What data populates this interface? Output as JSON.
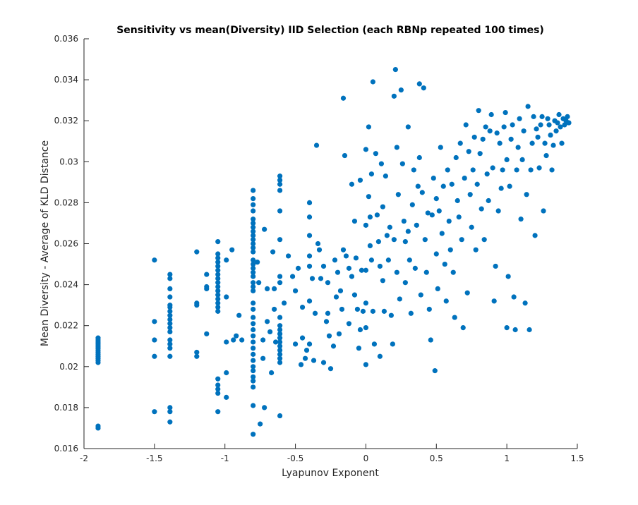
{
  "chart_data": {
    "type": "scatter",
    "title": "Sensitivity vs mean(Diversity) IID Selection (each RBNp repeated 100 times)",
    "xlabel": "Lyapunov Exponent",
    "ylabel": "Mean Diversity - Average of KLD Distance",
    "xlim": [
      -2,
      1.5
    ],
    "ylim": [
      0.016,
      0.036
    ],
    "xticks": [
      -2,
      -1.5,
      -1,
      -0.5,
      0,
      0.5,
      1,
      1.5
    ],
    "xtick_labels": [
      "-2",
      "-1.5",
      "-1",
      "-0.5",
      "0",
      "0.5",
      "1",
      "1.5"
    ],
    "yticks": [
      0.016,
      0.018,
      0.02,
      0.022,
      0.024,
      0.026,
      0.028,
      0.03,
      0.032,
      0.034,
      0.036
    ],
    "ytick_labels": [
      "0.016",
      "0.018",
      "0.02",
      "0.022",
      "0.024",
      "0.026",
      "0.028",
      "0.03",
      "0.032",
      "0.034",
      "0.036"
    ],
    "grid": false,
    "marker_color": "#0072BD",
    "points": [
      [
        -1.9,
        0.0214
      ],
      [
        -1.9,
        0.0213
      ],
      [
        -1.9,
        0.0212
      ],
      [
        -1.9,
        0.0211
      ],
      [
        -1.9,
        0.021
      ],
      [
        -1.9,
        0.0209
      ],
      [
        -1.9,
        0.0208
      ],
      [
        -1.9,
        0.0207
      ],
      [
        -1.9,
        0.0206
      ],
      [
        -1.9,
        0.0205
      ],
      [
        -1.9,
        0.0204
      ],
      [
        -1.9,
        0.0203
      ],
      [
        -1.9,
        0.0202
      ],
      [
        -1.9,
        0.0171
      ],
      [
        -1.9,
        0.017
      ],
      [
        -1.5,
        0.0252
      ],
      [
        -1.5,
        0.0222
      ],
      [
        -1.5,
        0.0213
      ],
      [
        -1.5,
        0.0205
      ],
      [
        -1.5,
        0.0178
      ],
      [
        -1.39,
        0.0245
      ],
      [
        -1.39,
        0.0243
      ],
      [
        -1.39,
        0.0238
      ],
      [
        -1.39,
        0.0234
      ],
      [
        -1.39,
        0.023
      ],
      [
        -1.39,
        0.0229
      ],
      [
        -1.39,
        0.0227
      ],
      [
        -1.39,
        0.0225
      ],
      [
        -1.39,
        0.0223
      ],
      [
        -1.39,
        0.0221
      ],
      [
        -1.39,
        0.0219
      ],
      [
        -1.39,
        0.0217
      ],
      [
        -1.39,
        0.0213
      ],
      [
        -1.39,
        0.0211
      ],
      [
        -1.39,
        0.0209
      ],
      [
        -1.39,
        0.0205
      ],
      [
        -1.39,
        0.018
      ],
      [
        -1.39,
        0.0178
      ],
      [
        -1.39,
        0.0173
      ],
      [
        -1.2,
        0.0256
      ],
      [
        -1.2,
        0.0231
      ],
      [
        -1.2,
        0.023
      ],
      [
        -1.2,
        0.0207
      ],
      [
        -1.2,
        0.0205
      ],
      [
        -1.13,
        0.0245
      ],
      [
        -1.13,
        0.0239
      ],
      [
        -1.13,
        0.0238
      ],
      [
        -1.13,
        0.0216
      ],
      [
        -1.05,
        0.0261
      ],
      [
        -1.05,
        0.0255
      ],
      [
        -1.05,
        0.0253
      ],
      [
        -1.05,
        0.0251
      ],
      [
        -1.05,
        0.0249
      ],
      [
        -1.05,
        0.0247
      ],
      [
        -1.05,
        0.0245
      ],
      [
        -1.05,
        0.0243
      ],
      [
        -1.05,
        0.0241
      ],
      [
        -1.05,
        0.0239
      ],
      [
        -1.05,
        0.0237
      ],
      [
        -1.05,
        0.0235
      ],
      [
        -1.05,
        0.0233
      ],
      [
        -1.05,
        0.0231
      ],
      [
        -1.05,
        0.0229
      ],
      [
        -1.05,
        0.0227
      ],
      [
        -1.05,
        0.0194
      ],
      [
        -1.05,
        0.0191
      ],
      [
        -1.05,
        0.0189
      ],
      [
        -1.05,
        0.0187
      ],
      [
        -1.05,
        0.0178
      ],
      [
        -0.99,
        0.0252
      ],
      [
        -0.99,
        0.0234
      ],
      [
        -0.99,
        0.0212
      ],
      [
        -0.99,
        0.0197
      ],
      [
        -0.99,
        0.0185
      ],
      [
        -0.95,
        0.0257
      ],
      [
        -0.94,
        0.0213
      ],
      [
        -0.92,
        0.0215
      ],
      [
        -0.9,
        0.0225
      ],
      [
        -0.88,
        0.0213
      ],
      [
        -0.8,
        0.0286
      ],
      [
        -0.8,
        0.0282
      ],
      [
        -0.8,
        0.0279
      ],
      [
        -0.8,
        0.0276
      ],
      [
        -0.8,
        0.0272
      ],
      [
        -0.8,
        0.027
      ],
      [
        -0.8,
        0.0268
      ],
      [
        -0.8,
        0.0266
      ],
      [
        -0.8,
        0.0264
      ],
      [
        -0.8,
        0.0262
      ],
      [
        -0.8,
        0.026
      ],
      [
        -0.8,
        0.0258
      ],
      [
        -0.8,
        0.0256
      ],
      [
        -0.8,
        0.0252
      ],
      [
        -0.8,
        0.025
      ],
      [
        -0.8,
        0.0248
      ],
      [
        -0.8,
        0.0246
      ],
      [
        -0.8,
        0.0244
      ],
      [
        -0.8,
        0.0241
      ],
      [
        -0.8,
        0.0239
      ],
      [
        -0.8,
        0.0237
      ],
      [
        -0.8,
        0.0231
      ],
      [
        -0.8,
        0.0228
      ],
      [
        -0.8,
        0.0224
      ],
      [
        -0.8,
        0.0221
      ],
      [
        -0.8,
        0.0218
      ],
      [
        -0.8,
        0.0215
      ],
      [
        -0.8,
        0.0212
      ],
      [
        -0.8,
        0.0209
      ],
      [
        -0.8,
        0.0206
      ],
      [
        -0.8,
        0.0203
      ],
      [
        -0.8,
        0.02
      ],
      [
        -0.8,
        0.0198
      ],
      [
        -0.8,
        0.0195
      ],
      [
        -0.8,
        0.0193
      ],
      [
        -0.8,
        0.019
      ],
      [
        -0.8,
        0.0181
      ],
      [
        -0.8,
        0.0167
      ],
      [
        -0.77,
        0.0251
      ],
      [
        -0.76,
        0.0241
      ],
      [
        -0.75,
        0.0172
      ],
      [
        -0.73,
        0.0213
      ],
      [
        -0.73,
        0.0204
      ],
      [
        -0.72,
        0.018
      ],
      [
        -0.72,
        0.0267
      ],
      [
        -0.7,
        0.0238
      ],
      [
        -0.7,
        0.0222
      ],
      [
        -0.68,
        0.0217
      ],
      [
        -0.67,
        0.0197
      ],
      [
        -0.66,
        0.0256
      ],
      [
        -0.65,
        0.0238
      ],
      [
        -0.65,
        0.0228
      ],
      [
        -0.64,
        0.0212
      ],
      [
        -0.61,
        0.0293
      ],
      [
        -0.61,
        0.0291
      ],
      [
        -0.61,
        0.0289
      ],
      [
        -0.61,
        0.0286
      ],
      [
        -0.61,
        0.0276
      ],
      [
        -0.61,
        0.0262
      ],
      [
        -0.61,
        0.0244
      ],
      [
        -0.61,
        0.0241
      ],
      [
        -0.61,
        0.0224
      ],
      [
        -0.61,
        0.022
      ],
      [
        -0.61,
        0.0218
      ],
      [
        -0.61,
        0.0216
      ],
      [
        -0.61,
        0.0214
      ],
      [
        -0.61,
        0.0212
      ],
      [
        -0.61,
        0.021
      ],
      [
        -0.61,
        0.0208
      ],
      [
        -0.61,
        0.0206
      ],
      [
        -0.61,
        0.0204
      ],
      [
        -0.61,
        0.0202
      ],
      [
        -0.61,
        0.0176
      ],
      [
        -0.58,
        0.0231
      ],
      [
        -0.55,
        0.0254
      ],
      [
        -0.52,
        0.0244
      ],
      [
        -0.5,
        0.0237
      ],
      [
        -0.5,
        0.0211
      ],
      [
        -0.48,
        0.0248
      ],
      [
        -0.46,
        0.0201
      ],
      [
        -0.45,
        0.0229
      ],
      [
        -0.45,
        0.0214
      ],
      [
        -0.43,
        0.0204
      ],
      [
        -0.42,
        0.0208
      ],
      [
        -0.4,
        0.028
      ],
      [
        -0.4,
        0.0273
      ],
      [
        -0.4,
        0.0264
      ],
      [
        -0.4,
        0.0254
      ],
      [
        -0.4,
        0.0249
      ],
      [
        -0.4,
        0.0232
      ],
      [
        -0.4,
        0.0211
      ],
      [
        -0.38,
        0.0243
      ],
      [
        -0.37,
        0.0203
      ],
      [
        -0.36,
        0.0226
      ],
      [
        -0.35,
        0.0308
      ],
      [
        -0.34,
        0.026
      ],
      [
        -0.33,
        0.0257
      ],
      [
        -0.32,
        0.0243
      ],
      [
        -0.3,
        0.0249
      ],
      [
        -0.3,
        0.0202
      ],
      [
        -0.28,
        0.0222
      ],
      [
        -0.27,
        0.0241
      ],
      [
        -0.27,
        0.0226
      ],
      [
        -0.26,
        0.0215
      ],
      [
        -0.25,
        0.0199
      ],
      [
        -0.23,
        0.021
      ],
      [
        -0.22,
        0.0252
      ],
      [
        -0.21,
        0.0234
      ],
      [
        -0.2,
        0.0246
      ],
      [
        -0.19,
        0.0216
      ],
      [
        -0.18,
        0.0237
      ],
      [
        -0.17,
        0.0228
      ],
      [
        -0.16,
        0.0257
      ],
      [
        -0.16,
        0.0331
      ],
      [
        -0.15,
        0.0303
      ],
      [
        -0.14,
        0.0254
      ],
      [
        -0.12,
        0.0248
      ],
      [
        -0.12,
        0.0221
      ],
      [
        -0.1,
        0.0289
      ],
      [
        -0.1,
        0.0244
      ],
      [
        -0.08,
        0.0271
      ],
      [
        -0.08,
        0.0235
      ],
      [
        -0.07,
        0.0253
      ],
      [
        -0.06,
        0.0228
      ],
      [
        -0.05,
        0.0209
      ],
      [
        -0.04,
        0.0291
      ],
      [
        -0.04,
        0.0218
      ],
      [
        -0.03,
        0.0247
      ],
      [
        -0.02,
        0.0227
      ],
      [
        0.0,
        0.0306
      ],
      [
        0.0,
        0.0269
      ],
      [
        0.0,
        0.0247
      ],
      [
        0.0,
        0.0231
      ],
      [
        0.0,
        0.0219
      ],
      [
        0.0,
        0.0201
      ],
      [
        0.02,
        0.0317
      ],
      [
        0.02,
        0.0283
      ],
      [
        0.03,
        0.0273
      ],
      [
        0.03,
        0.0259
      ],
      [
        0.04,
        0.0294
      ],
      [
        0.04,
        0.0252
      ],
      [
        0.05,
        0.0339
      ],
      [
        0.05,
        0.0227
      ],
      [
        0.06,
        0.0211
      ],
      [
        0.07,
        0.0304
      ],
      [
        0.08,
        0.0274
      ],
      [
        0.09,
        0.0261
      ],
      [
        0.1,
        0.0249
      ],
      [
        0.1,
        0.0205
      ],
      [
        0.11,
        0.0299
      ],
      [
        0.12,
        0.0278
      ],
      [
        0.12,
        0.0242
      ],
      [
        0.13,
        0.0227
      ],
      [
        0.14,
        0.0293
      ],
      [
        0.15,
        0.0264
      ],
      [
        0.16,
        0.0252
      ],
      [
        0.17,
        0.0268
      ],
      [
        0.18,
        0.0225
      ],
      [
        0.19,
        0.0211
      ],
      [
        0.2,
        0.0332
      ],
      [
        0.2,
        0.0262
      ],
      [
        0.21,
        0.0345
      ],
      [
        0.22,
        0.0307
      ],
      [
        0.22,
        0.0246
      ],
      [
        0.23,
        0.0284
      ],
      [
        0.24,
        0.0233
      ],
      [
        0.25,
        0.0335
      ],
      [
        0.26,
        0.0299
      ],
      [
        0.27,
        0.0271
      ],
      [
        0.28,
        0.0261
      ],
      [
        0.28,
        0.0241
      ],
      [
        0.3,
        0.0317
      ],
      [
        0.3,
        0.0266
      ],
      [
        0.31,
        0.0252
      ],
      [
        0.32,
        0.0226
      ],
      [
        0.33,
        0.0279
      ],
      [
        0.34,
        0.0296
      ],
      [
        0.35,
        0.0248
      ],
      [
        0.36,
        0.0269
      ],
      [
        0.37,
        0.0288
      ],
      [
        0.38,
        0.0338
      ],
      [
        0.38,
        0.0302
      ],
      [
        0.39,
        0.0235
      ],
      [
        0.4,
        0.0285
      ],
      [
        0.41,
        0.0336
      ],
      [
        0.42,
        0.0262
      ],
      [
        0.43,
        0.0246
      ],
      [
        0.44,
        0.0275
      ],
      [
        0.45,
        0.0228
      ],
      [
        0.46,
        0.0213
      ],
      [
        0.47,
        0.0274
      ],
      [
        0.48,
        0.0292
      ],
      [
        0.49,
        0.0198
      ],
      [
        0.5,
        0.0255
      ],
      [
        0.5,
        0.0282
      ],
      [
        0.51,
        0.0238
      ],
      [
        0.52,
        0.0276
      ],
      [
        0.53,
        0.0307
      ],
      [
        0.54,
        0.0265
      ],
      [
        0.55,
        0.0288
      ],
      [
        0.56,
        0.025
      ],
      [
        0.57,
        0.0232
      ],
      [
        0.58,
        0.0296
      ],
      [
        0.59,
        0.0271
      ],
      [
        0.6,
        0.0257
      ],
      [
        0.61,
        0.0289
      ],
      [
        0.62,
        0.0246
      ],
      [
        0.63,
        0.0224
      ],
      [
        0.64,
        0.0302
      ],
      [
        0.65,
        0.0281
      ],
      [
        0.66,
        0.0273
      ],
      [
        0.67,
        0.0309
      ],
      [
        0.68,
        0.0262
      ],
      [
        0.69,
        0.0219
      ],
      [
        0.7,
        0.0292
      ],
      [
        0.71,
        0.0318
      ],
      [
        0.72,
        0.0236
      ],
      [
        0.73,
        0.0305
      ],
      [
        0.74,
        0.0284
      ],
      [
        0.75,
        0.0268
      ],
      [
        0.76,
        0.0296
      ],
      [
        0.77,
        0.0312
      ],
      [
        0.78,
        0.0257
      ],
      [
        0.79,
        0.0289
      ],
      [
        0.8,
        0.0325
      ],
      [
        0.81,
        0.0304
      ],
      [
        0.82,
        0.0277
      ],
      [
        0.83,
        0.0311
      ],
      [
        0.84,
        0.0262
      ],
      [
        0.85,
        0.0317
      ],
      [
        0.86,
        0.0294
      ],
      [
        0.87,
        0.0281
      ],
      [
        0.88,
        0.0315
      ],
      [
        0.89,
        0.0323
      ],
      [
        0.9,
        0.0297
      ],
      [
        0.91,
        0.0232
      ],
      [
        0.92,
        0.0249
      ],
      [
        0.93,
        0.0314
      ],
      [
        0.94,
        0.0276
      ],
      [
        0.95,
        0.0309
      ],
      [
        0.96,
        0.0287
      ],
      [
        0.97,
        0.0296
      ],
      [
        0.98,
        0.0317
      ],
      [
        0.99,
        0.0324
      ],
      [
        1.0,
        0.0301
      ],
      [
        1.0,
        0.0219
      ],
      [
        1.01,
        0.0244
      ],
      [
        1.02,
        0.0288
      ],
      [
        1.03,
        0.0311
      ],
      [
        1.04,
        0.0318
      ],
      [
        1.05,
        0.0234
      ],
      [
        1.06,
        0.0218
      ],
      [
        1.07,
        0.0296
      ],
      [
        1.08,
        0.0307
      ],
      [
        1.09,
        0.0321
      ],
      [
        1.1,
        0.0272
      ],
      [
        1.11,
        0.0301
      ],
      [
        1.12,
        0.0315
      ],
      [
        1.13,
        0.0231
      ],
      [
        1.14,
        0.0284
      ],
      [
        1.15,
        0.0327
      ],
      [
        1.16,
        0.0218
      ],
      [
        1.17,
        0.0296
      ],
      [
        1.18,
        0.0309
      ],
      [
        1.19,
        0.0322
      ],
      [
        1.2,
        0.0264
      ],
      [
        1.21,
        0.0316
      ],
      [
        1.22,
        0.0312
      ],
      [
        1.23,
        0.0297
      ],
      [
        1.24,
        0.0318
      ],
      [
        1.25,
        0.0322
      ],
      [
        1.26,
        0.0276
      ],
      [
        1.27,
        0.0309
      ],
      [
        1.28,
        0.0303
      ],
      [
        1.29,
        0.0321
      ],
      [
        1.3,
        0.0318
      ],
      [
        1.31,
        0.0313
      ],
      [
        1.32,
        0.0296
      ],
      [
        1.33,
        0.0308
      ],
      [
        1.34,
        0.032
      ],
      [
        1.35,
        0.0315
      ],
      [
        1.36,
        0.0319
      ],
      [
        1.37,
        0.0323
      ],
      [
        1.38,
        0.0317
      ],
      [
        1.39,
        0.0309
      ],
      [
        1.4,
        0.0321
      ],
      [
        1.41,
        0.0318
      ],
      [
        1.42,
        0.032
      ],
      [
        1.43,
        0.0322
      ],
      [
        1.44,
        0.0319
      ]
    ]
  }
}
